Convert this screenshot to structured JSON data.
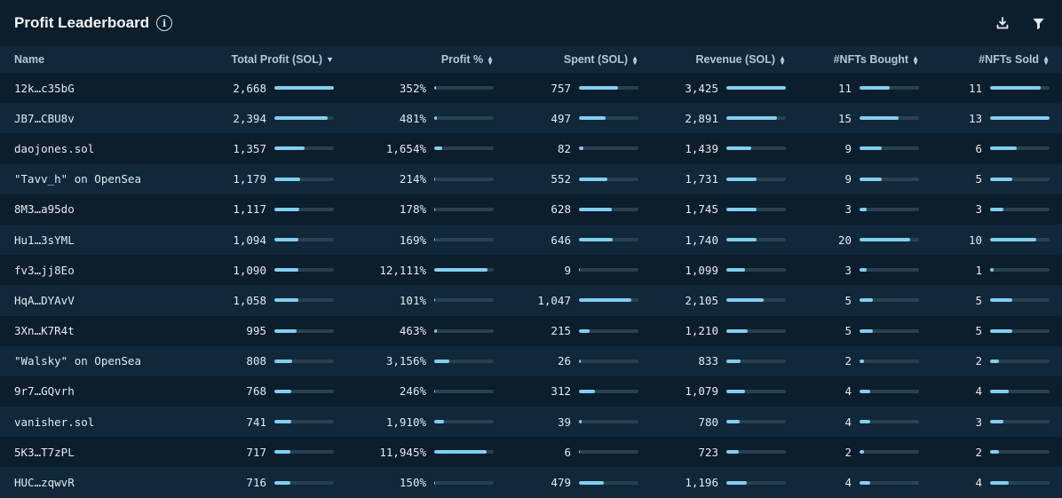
{
  "header": {
    "title": "Profit Leaderboard",
    "info_glyph": "i"
  },
  "columns": [
    {
      "label": "Name"
    },
    {
      "label": "Total Profit (SOL)",
      "sort": "desc"
    },
    {
      "label": "Profit %",
      "sort": "both"
    },
    {
      "label": "Spent (SOL)",
      "sort": "both"
    },
    {
      "label": "Revenue (SOL)",
      "sort": "both"
    },
    {
      "label": "#NFTs Bought",
      "sort": "both"
    },
    {
      "label": "#NFTs Sold",
      "sort": "both"
    }
  ],
  "colors": {
    "bar_fill": "#7fd0f2",
    "bar_track": "#29404f",
    "row_alt": "#10283a",
    "background": "#0c1d2c"
  },
  "rows": [
    {
      "name": "12k…c35bG",
      "profit": "2,668",
      "profit_pct": "352%",
      "spent": "757",
      "revenue": "3,425",
      "bought": "11",
      "sold": "11",
      "bars": [
        1.0,
        0.03,
        0.65,
        1.0,
        0.5,
        0.85
      ]
    },
    {
      "name": "JB7…CBU8v",
      "profit": "2,394",
      "profit_pct": "481%",
      "spent": "497",
      "revenue": "2,891",
      "bought": "15",
      "sold": "13",
      "bars": [
        0.9,
        0.04,
        0.45,
        0.85,
        0.65,
        1.0
      ]
    },
    {
      "name": "daojones.sol",
      "profit": "1,357",
      "profit_pct": "1,654%",
      "spent": "82",
      "revenue": "1,439",
      "bought": "9",
      "sold": "6",
      "bars": [
        0.5,
        0.13,
        0.08,
        0.42,
        0.38,
        0.45
      ]
    },
    {
      "name": "\"Tavv_h\" on OpenSea",
      "profit": "1,179",
      "profit_pct": "214%",
      "spent": "552",
      "revenue": "1,731",
      "bought": "9",
      "sold": "5",
      "bars": [
        0.44,
        0.02,
        0.48,
        0.5,
        0.38,
        0.38
      ]
    },
    {
      "name": "8M3…a95do",
      "profit": "1,117",
      "profit_pct": "178%",
      "spent": "628",
      "revenue": "1,745",
      "bought": "3",
      "sold": "3",
      "bars": [
        0.42,
        0.015,
        0.55,
        0.51,
        0.12,
        0.22
      ]
    },
    {
      "name": "Hu1…3sYML",
      "profit": "1,094",
      "profit_pct": "169%",
      "spent": "646",
      "revenue": "1,740",
      "bought": "20",
      "sold": "10",
      "bars": [
        0.41,
        0.015,
        0.57,
        0.51,
        0.85,
        0.77
      ]
    },
    {
      "name": "fv3…jj8Eo",
      "profit": "1,090",
      "profit_pct": "12,111%",
      "spent": "9",
      "revenue": "1,099",
      "bought": "3",
      "sold": "1",
      "bars": [
        0.41,
        0.9,
        0.02,
        0.32,
        0.12,
        0.06
      ]
    },
    {
      "name": "HqA…DYAvV",
      "profit": "1,058",
      "profit_pct": "101%",
      "spent": "1,047",
      "revenue": "2,105",
      "bought": "5",
      "sold": "5",
      "bars": [
        0.4,
        0.01,
        0.88,
        0.62,
        0.22,
        0.38
      ]
    },
    {
      "name": "3Xn…K7R4t",
      "profit": "995",
      "profit_pct": "463%",
      "spent": "215",
      "revenue": "1,210",
      "bought": "5",
      "sold": "5",
      "bars": [
        0.37,
        0.04,
        0.18,
        0.36,
        0.22,
        0.38
      ]
    },
    {
      "name": "\"Walsky\" on OpenSea",
      "profit": "808",
      "profit_pct": "3,156%",
      "spent": "26",
      "revenue": "833",
      "bought": "2",
      "sold": "2",
      "bars": [
        0.3,
        0.26,
        0.03,
        0.24,
        0.08,
        0.15
      ]
    },
    {
      "name": "9r7…GQvrh",
      "profit": "768",
      "profit_pct": "246%",
      "spent": "312",
      "revenue": "1,079",
      "bought": "4",
      "sold": "4",
      "bars": [
        0.29,
        0.02,
        0.27,
        0.32,
        0.18,
        0.31
      ]
    },
    {
      "name": "vanisher.sol",
      "profit": "741",
      "profit_pct": "1,910%",
      "spent": "39",
      "revenue": "780",
      "bought": "4",
      "sold": "3",
      "bars": [
        0.28,
        0.16,
        0.04,
        0.23,
        0.18,
        0.22
      ]
    },
    {
      "name": "5K3…T7zPL",
      "profit": "717",
      "profit_pct": "11,945%",
      "spent": "6",
      "revenue": "723",
      "bought": "2",
      "sold": "2",
      "bars": [
        0.27,
        0.88,
        0.02,
        0.21,
        0.08,
        0.15
      ]
    },
    {
      "name": "HUC…zqwvR",
      "profit": "716",
      "profit_pct": "150%",
      "spent": "479",
      "revenue": "1,196",
      "bought": "4",
      "sold": "4",
      "bars": [
        0.27,
        0.01,
        0.42,
        0.35,
        0.18,
        0.31
      ]
    }
  ]
}
